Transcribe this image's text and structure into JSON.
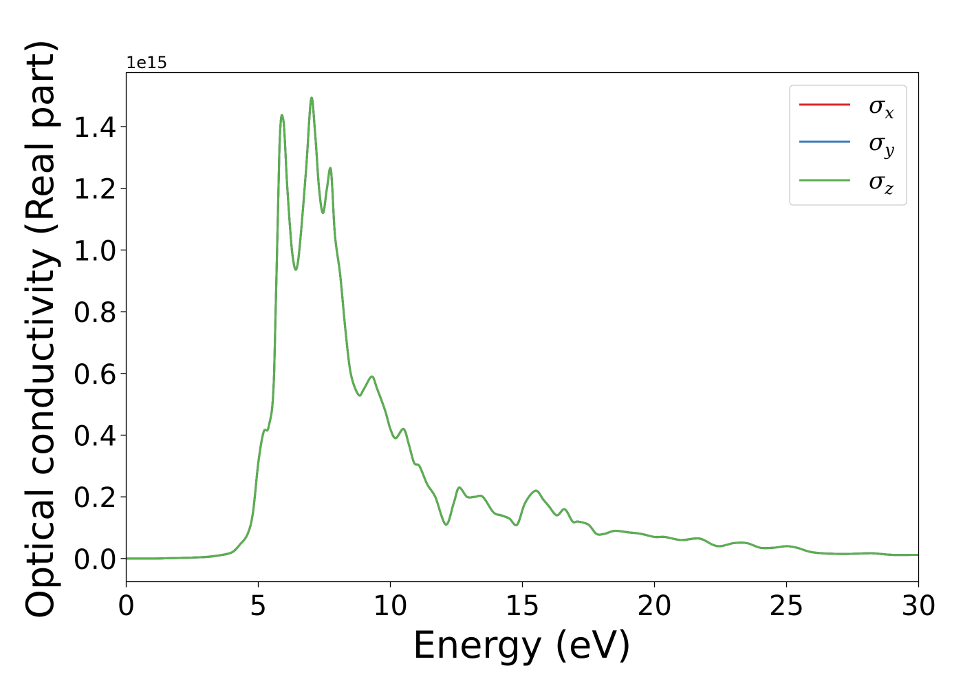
{
  "chart_data": {
    "type": "line",
    "xlabel": "Energy (eV)",
    "ylabel": "Optical conductivity (Real part)",
    "y_offset_text": "1e15",
    "y_multiplier": 1000000000000000.0,
    "xlim": [
      0,
      30
    ],
    "ylim": [
      -0.075,
      1.575
    ],
    "x_ticks": [
      0,
      5,
      10,
      15,
      20,
      25,
      30
    ],
    "x_tick_labels": [
      "0",
      "5",
      "10",
      "15",
      "20",
      "25",
      "30"
    ],
    "y_ticks": [
      0.0,
      0.2,
      0.4,
      0.6,
      0.8,
      1.0,
      1.2,
      1.4
    ],
    "y_tick_labels": [
      "0.0",
      "0.2",
      "0.4",
      "0.6",
      "0.8",
      "1.0",
      "1.2",
      "1.4"
    ],
    "grid": false,
    "legend_position": "top-right",
    "series": [
      {
        "name": "σ",
        "subscript": "x",
        "color": "#d62728"
      },
      {
        "name": "σ",
        "subscript": "y",
        "color": "#3a7bbf"
      },
      {
        "name": "σ",
        "subscript": "z",
        "color": "#5aaf4f"
      }
    ],
    "x": [
      0,
      1,
      2,
      3,
      3.5,
      4,
      4.3,
      4.6,
      4.8,
      5.0,
      5.2,
      5.4,
      5.6,
      5.8,
      5.95,
      6.1,
      6.3,
      6.5,
      6.8,
      7.0,
      7.15,
      7.3,
      7.45,
      7.6,
      7.75,
      7.9,
      8.1,
      8.3,
      8.5,
      8.8,
      9.0,
      9.3,
      9.5,
      9.8,
      10.0,
      10.2,
      10.5,
      10.7,
      10.9,
      11.1,
      11.4,
      11.7,
      12.1,
      12.4,
      12.6,
      12.9,
      13.2,
      13.5,
      13.9,
      14.2,
      14.5,
      14.8,
      15.1,
      15.5,
      15.8,
      16.0,
      16.3,
      16.6,
      16.9,
      17.1,
      17.5,
      17.8,
      18.1,
      18.5,
      19.0,
      19.5,
      20.0,
      20.4,
      21.0,
      21.7,
      22.2,
      22.5,
      23.0,
      23.5,
      24.0,
      24.5,
      25.0,
      25.4,
      26.0,
      27.0,
      28.0,
      28.3,
      29.0,
      30.0
    ],
    "y": [
      0.0,
      0.0,
      0.002,
      0.005,
      0.01,
      0.02,
      0.045,
      0.08,
      0.15,
      0.31,
      0.41,
      0.43,
      0.6,
      1.33,
      1.42,
      1.2,
      0.98,
      0.96,
      1.25,
      1.49,
      1.38,
      1.2,
      1.12,
      1.2,
      1.26,
      1.05,
      0.92,
      0.74,
      0.6,
      0.53,
      0.55,
      0.59,
      0.55,
      0.48,
      0.42,
      0.39,
      0.42,
      0.37,
      0.31,
      0.3,
      0.24,
      0.2,
      0.11,
      0.18,
      0.23,
      0.2,
      0.2,
      0.2,
      0.15,
      0.14,
      0.13,
      0.11,
      0.18,
      0.22,
      0.19,
      0.17,
      0.14,
      0.16,
      0.12,
      0.12,
      0.11,
      0.08,
      0.08,
      0.09,
      0.085,
      0.08,
      0.07,
      0.07,
      0.06,
      0.065,
      0.045,
      0.04,
      0.05,
      0.05,
      0.035,
      0.035,
      0.04,
      0.035,
      0.02,
      0.015,
      0.017,
      0.017,
      0.012,
      0.012
    ]
  }
}
